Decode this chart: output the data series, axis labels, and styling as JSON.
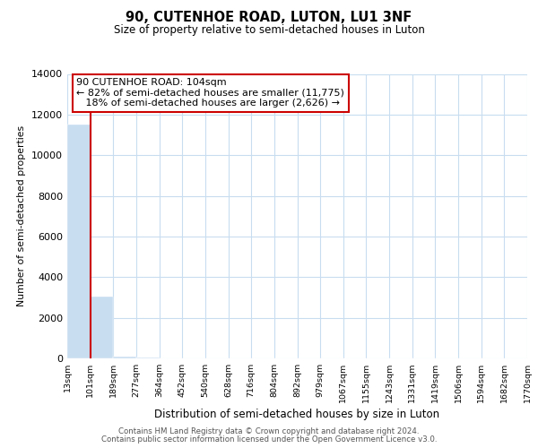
{
  "title": "90, CUTENHOE ROAD, LUTON, LU1 3NF",
  "subtitle": "Size of property relative to semi-detached houses in Luton",
  "xlabel": "Distribution of semi-detached houses by size in Luton",
  "ylabel": "Number of semi-detached properties",
  "bar_values": [
    11500,
    3050,
    100,
    30,
    10,
    5,
    3,
    2,
    1,
    1,
    1,
    1,
    1,
    1,
    1,
    1,
    1,
    1,
    1,
    1
  ],
  "bin_labels": [
    "13sqm",
    "101sqm",
    "189sqm",
    "277sqm",
    "364sqm",
    "452sqm",
    "540sqm",
    "628sqm",
    "716sqm",
    "804sqm",
    "892sqm",
    "979sqm",
    "1067sqm",
    "1155sqm",
    "1243sqm",
    "1331sqm",
    "1419sqm",
    "1506sqm",
    "1594sqm",
    "1682sqm",
    "1770sqm"
  ],
  "ylim": [
    0,
    14000
  ],
  "yticks": [
    0,
    2000,
    4000,
    6000,
    8000,
    10000,
    12000,
    14000
  ],
  "property_line_x": 1,
  "property_sqm": "104sqm",
  "pct_smaller": 82,
  "count_smaller": 11775,
  "pct_larger": 18,
  "count_larger": 2626,
  "bar_color": "#c8ddf0",
  "property_line_color": "#cc0000",
  "annotation_box_edge": "#cc0000",
  "grid_color": "#c8ddf0",
  "footer_line1": "Contains HM Land Registry data © Crown copyright and database right 2024.",
  "footer_line2": "Contains public sector information licensed under the Open Government Licence v3.0."
}
